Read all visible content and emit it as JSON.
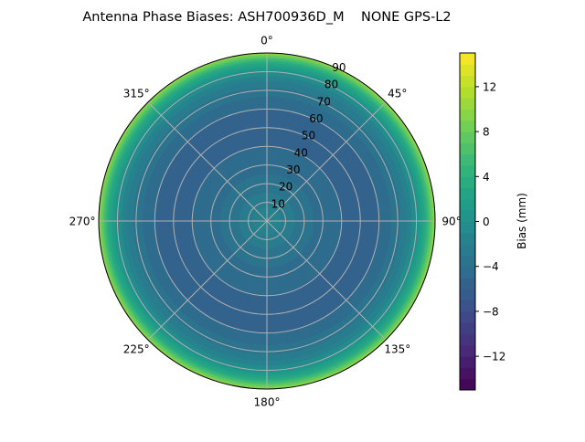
{
  "chart_data": {
    "type": "heatmap",
    "projection": "polar",
    "title": "Antenna Phase Biases: ASH700936D_M    NONE GPS-L2",
    "theta_direction": "clockwise",
    "theta_zero": "north",
    "theta_ticks": [
      "0°",
      "45°",
      "90°",
      "135°",
      "180°",
      "225°",
      "270°",
      "315°"
    ],
    "theta_tick_values": [
      0,
      45,
      90,
      135,
      180,
      225,
      270,
      315
    ],
    "r_ticks": [
      "10",
      "20",
      "30",
      "40",
      "50",
      "60",
      "70",
      "80",
      "90"
    ],
    "r_tick_values": [
      10,
      20,
      30,
      40,
      50,
      60,
      70,
      80,
      90
    ],
    "rlim": [
      0,
      90
    ],
    "grid": true,
    "colormap": "viridis",
    "colorbar": {
      "label": "Bias (mm)",
      "range": [
        -15,
        15
      ],
      "level_step": 1,
      "ticks": [
        "−12",
        "−8",
        "−4",
        "0",
        "4",
        "8",
        "12"
      ],
      "tick_values": [
        -12,
        -8,
        -4,
        0,
        4,
        8,
        12
      ],
      "position": "right"
    },
    "radial_profile": {
      "zenith_deg": [
        0,
        5,
        10,
        20,
        30,
        40,
        50,
        60,
        70,
        75,
        80,
        85,
        90
      ],
      "bias_mm": [
        -1,
        -1.5,
        -2.5,
        -3.5,
        -4.5,
        -5,
        -5.5,
        -5,
        -3.5,
        -2,
        0,
        3.5,
        10
      ]
    }
  }
}
